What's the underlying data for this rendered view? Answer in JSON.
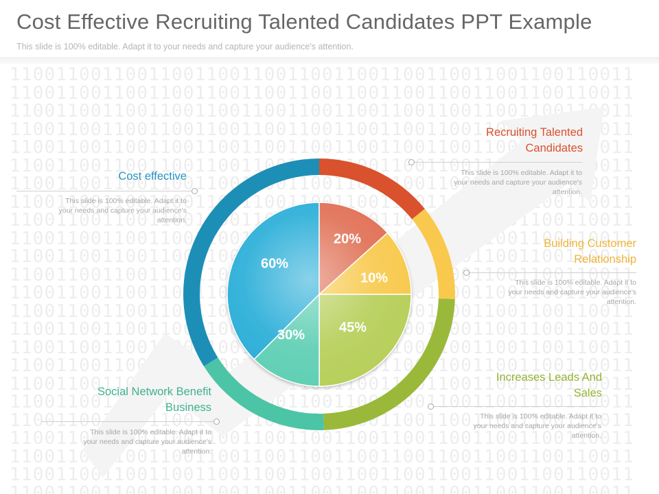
{
  "header": {
    "title": "Cost Effective Recruiting Talented Candidates PPT Example",
    "subtitle": "This slide is 100% editable. Adapt it to your needs and capture your audience's attention."
  },
  "background": {
    "binary_row": "110011001100110011001100110011001100110011001100110011"
  },
  "segments": [
    {
      "id": "cost",
      "pie_label": "60%",
      "value": 60,
      "color": "#2aaed8",
      "ring_color": "#1d8fb7",
      "label_lines": [
        "Cost effective"
      ],
      "label_color": "#2a93c2",
      "desc_lines": [
        "This slide is 100% editable. Adapt it to",
        "your needs and capture your audience's",
        "attention."
      ]
    },
    {
      "id": "recruit",
      "pie_label": "20%",
      "value": 20,
      "color": "#e06f54",
      "ring_color": "#d9512d",
      "label_lines": [
        "Recruiting Talented",
        "Candidates"
      ],
      "label_color": "#d9512d",
      "desc_lines": [
        "This slide is 100% editable. Adapt it to",
        "your needs and capture your audience's",
        "attention."
      ]
    },
    {
      "id": "customer",
      "pie_label": "10%",
      "value": 10,
      "color": "#f8c94e",
      "ring_color": "#f9c94e",
      "label_lines": [
        "Building Customer",
        "Relationship"
      ],
      "label_color": "#eeb53a",
      "desc_lines": [
        "This slide is 100% editable. Adapt it to",
        "your needs and capture your audience's",
        "attention."
      ]
    },
    {
      "id": "leads",
      "pie_label": "45%",
      "value": 45,
      "color": "#b7cf5a",
      "ring_color": "#9ab93a",
      "label_lines": [
        "Increases Leads And",
        "Sales"
      ],
      "label_color": "#93b335",
      "desc_lines": [
        "This slide is 100% editable. Adapt it to",
        "your needs and capture your audience's",
        "attention."
      ]
    },
    {
      "id": "social",
      "pie_label": "30%",
      "value": 30,
      "color": "#5fcfb4",
      "ring_color": "#4cc4a6",
      "label_lines": [
        "Social Network Benefit",
        "Business"
      ],
      "label_color": "#3eb08f",
      "desc_lines": [
        "This slide is 100% editable. Adapt it to",
        "your needs and capture your audience's",
        "attention."
      ]
    }
  ]
}
